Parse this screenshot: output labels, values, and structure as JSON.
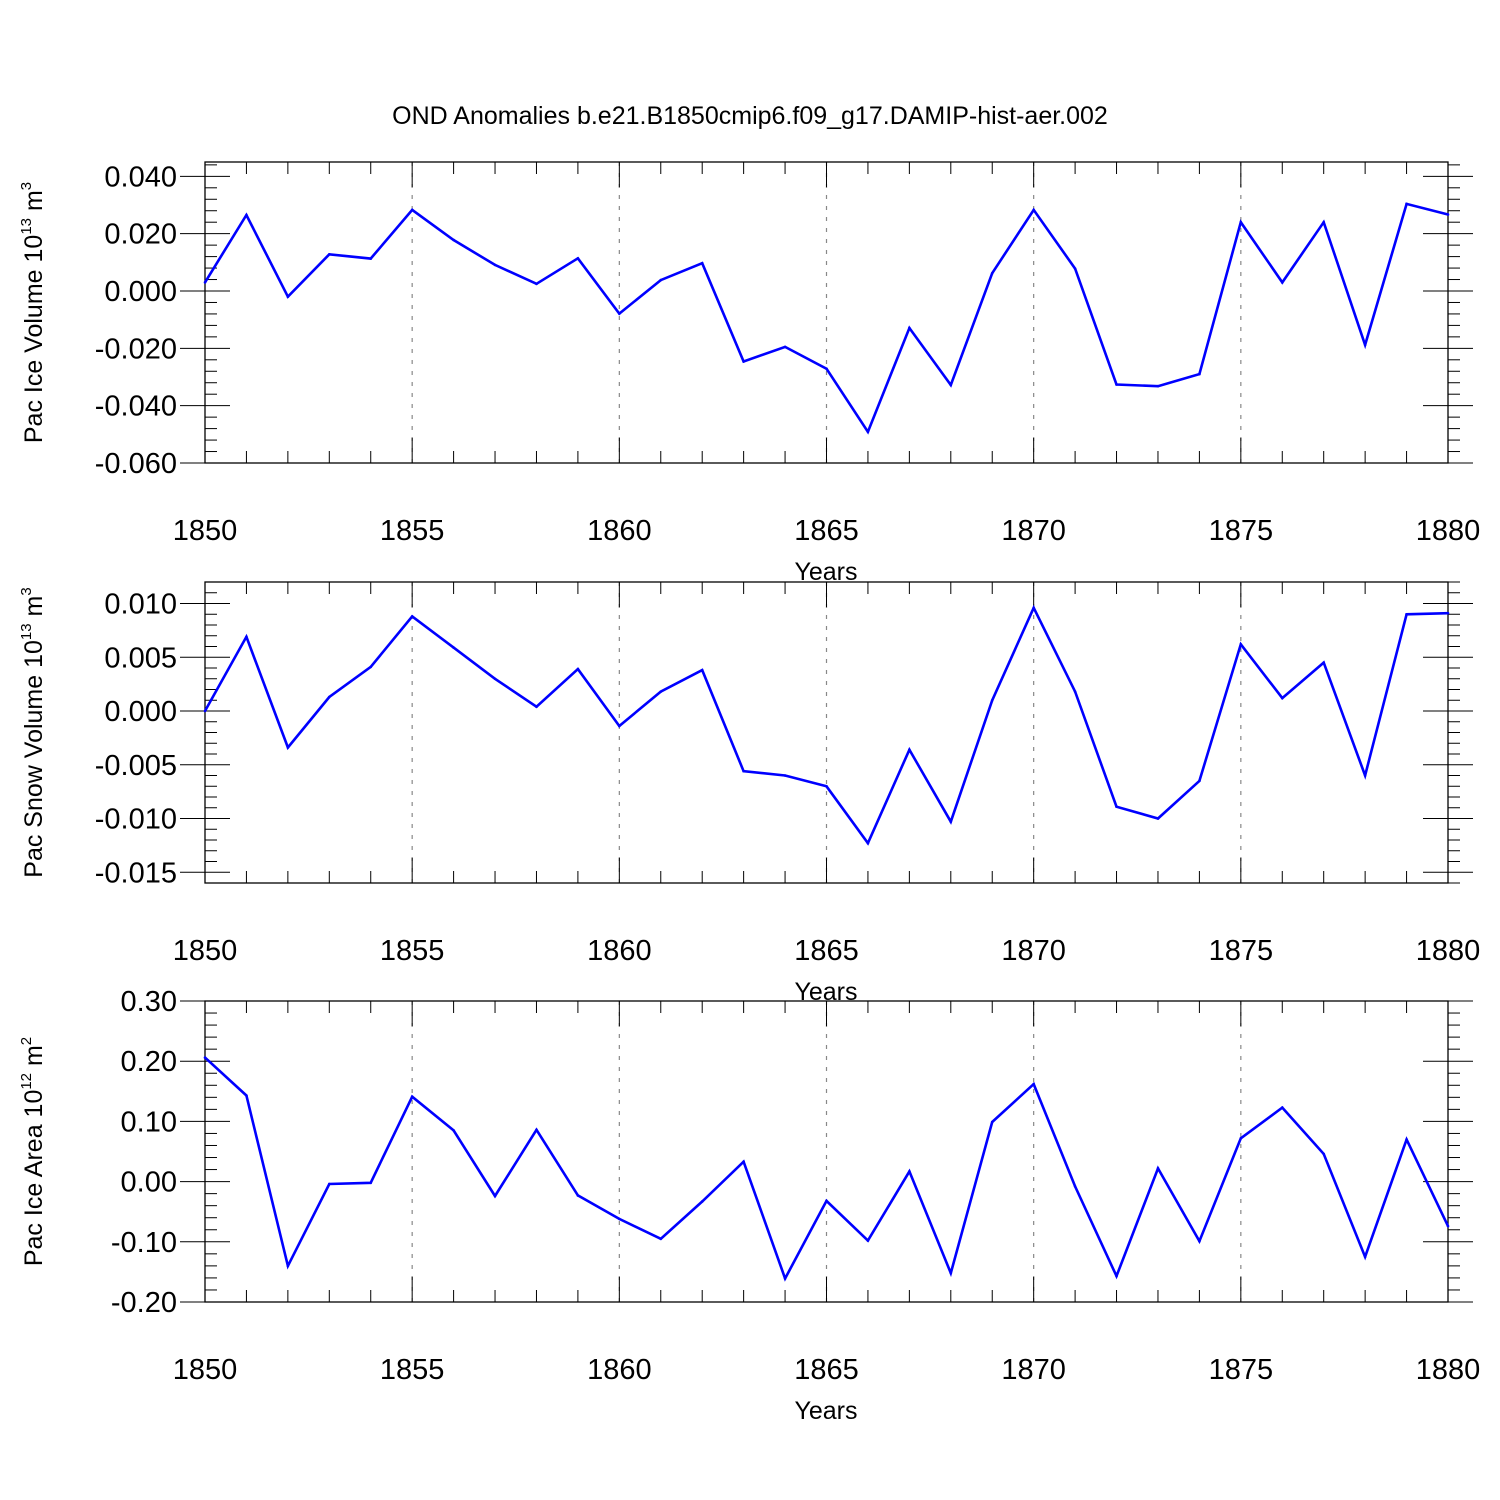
{
  "title": "OND Anomalies b.e21.B1850cmip6.f09_g17.DAMIP-hist-aer.002",
  "colors": {
    "line": "#0000ff",
    "axis": "#000000",
    "grid": "#888888"
  },
  "chart_data": [
    {
      "type": "line",
      "xlabel": "Years",
      "ylabel": {
        "main": "Pac Ice Volume 10",
        "exp": "13",
        "unit": " m",
        "unit_exp": "3"
      },
      "xlim": [
        1850,
        1880
      ],
      "ylim": [
        -0.06,
        0.045
      ],
      "xticks": [
        "1850",
        "1855",
        "1860",
        "1865",
        "1870",
        "1875",
        "1880"
      ],
      "yticks": [
        {
          "v": 0.04,
          "label": "0.040"
        },
        {
          "v": 0.02,
          "label": "0.020"
        },
        {
          "v": 0.0,
          "label": "0.000"
        },
        {
          "v": -0.02,
          "label": "-0.020"
        },
        {
          "v": -0.04,
          "label": "-0.040"
        },
        {
          "v": -0.06,
          "label": "-0.060"
        }
      ],
      "grid": "vertical dashed at major x ticks",
      "series": [
        {
          "x": [
            1850,
            1851,
            1852,
            1853,
            1854,
            1855,
            1856,
            1857,
            1858,
            1859,
            1860,
            1861,
            1862,
            1863,
            1864,
            1865,
            1866,
            1867,
            1868,
            1869,
            1870,
            1871,
            1872,
            1873,
            1874,
            1875,
            1876,
            1877,
            1878,
            1879,
            1880
          ],
          "values": [
            0.003,
            0.0265,
            -0.002,
            0.0128,
            0.0113,
            0.0283,
            0.0178,
            0.0091,
            0.0025,
            0.0114,
            -0.0079,
            0.0038,
            0.0097,
            -0.0246,
            -0.0195,
            -0.0271,
            -0.0491,
            -0.0129,
            -0.0328,
            0.0062,
            0.0283,
            0.0078,
            -0.0326,
            -0.0332,
            -0.029,
            0.024,
            0.003,
            0.024,
            -0.0188,
            0.0304,
            0.0267
          ]
        }
      ]
    },
    {
      "type": "line",
      "xlabel": "Years",
      "ylabel": {
        "main": "Pac Snow Volume 10",
        "exp": "13",
        "unit": " m",
        "unit_exp": "3"
      },
      "xlim": [
        1850,
        1880
      ],
      "ylim": [
        -0.016,
        0.012
      ],
      "xticks": [
        "1850",
        "1855",
        "1860",
        "1865",
        "1870",
        "1875",
        "1880"
      ],
      "yticks": [
        {
          "v": 0.01,
          "label": "0.010"
        },
        {
          "v": 0.005,
          "label": "0.005"
        },
        {
          "v": 0.0,
          "label": "0.000"
        },
        {
          "v": -0.005,
          "label": "-0.005"
        },
        {
          "v": -0.01,
          "label": "-0.010"
        },
        {
          "v": -0.015,
          "label": "-0.015"
        }
      ],
      "grid": "vertical dashed at major x ticks",
      "series": [
        {
          "x": [
            1850,
            1851,
            1852,
            1853,
            1854,
            1855,
            1856,
            1857,
            1858,
            1859,
            1860,
            1861,
            1862,
            1863,
            1864,
            1865,
            1866,
            1867,
            1868,
            1869,
            1870,
            1871,
            1872,
            1873,
            1874,
            1875,
            1876,
            1877,
            1878,
            1879,
            1880
          ],
          "values": [
            0.0,
            0.0069,
            -0.0034,
            0.0013,
            0.0041,
            0.0088,
            0.0059,
            0.003,
            0.0004,
            0.0039,
            -0.0014,
            0.0018,
            0.0038,
            -0.0056,
            -0.006,
            -0.007,
            -0.0123,
            -0.0036,
            -0.0103,
            0.001,
            0.0096,
            0.0018,
            -0.0089,
            -0.01,
            -0.0065,
            0.0062,
            0.0012,
            0.0045,
            -0.006,
            0.009,
            0.0091
          ]
        }
      ]
    },
    {
      "type": "line",
      "xlabel": "Years",
      "ylabel": {
        "main": "Pac Ice Area 10",
        "exp": "12",
        "unit": " m",
        "unit_exp": "2"
      },
      "xlim": [
        1850,
        1880
      ],
      "ylim": [
        -0.2,
        0.3
      ],
      "xticks": [
        "1850",
        "1855",
        "1860",
        "1865",
        "1870",
        "1875",
        "1880"
      ],
      "yticks": [
        {
          "v": 0.3,
          "label": "0.30"
        },
        {
          "v": 0.2,
          "label": "0.20"
        },
        {
          "v": 0.1,
          "label": "0.10"
        },
        {
          "v": 0.0,
          "label": "0.00"
        },
        {
          "v": -0.1,
          "label": "-0.10"
        },
        {
          "v": -0.2,
          "label": "-0.20"
        }
      ],
      "grid": "vertical dashed at major x ticks",
      "series": [
        {
          "x": [
            1850,
            1851,
            1852,
            1853,
            1854,
            1855,
            1856,
            1857,
            1858,
            1859,
            1860,
            1861,
            1862,
            1863,
            1864,
            1865,
            1866,
            1867,
            1868,
            1869,
            1870,
            1871,
            1872,
            1873,
            1874,
            1875,
            1876,
            1877,
            1878,
            1879,
            1880
          ],
          "values": [
            0.206,
            0.143,
            -0.14,
            -0.004,
            -0.002,
            0.141,
            0.085,
            -0.024,
            0.086,
            -0.023,
            -0.062,
            -0.095,
            -0.033,
            0.033,
            -0.161,
            -0.032,
            -0.098,
            0.017,
            -0.152,
            0.099,
            0.162,
            -0.008,
            -0.157,
            0.022,
            -0.099,
            0.072,
            0.123,
            0.046,
            -0.125,
            0.07,
            -0.074
          ]
        }
      ]
    }
  ]
}
